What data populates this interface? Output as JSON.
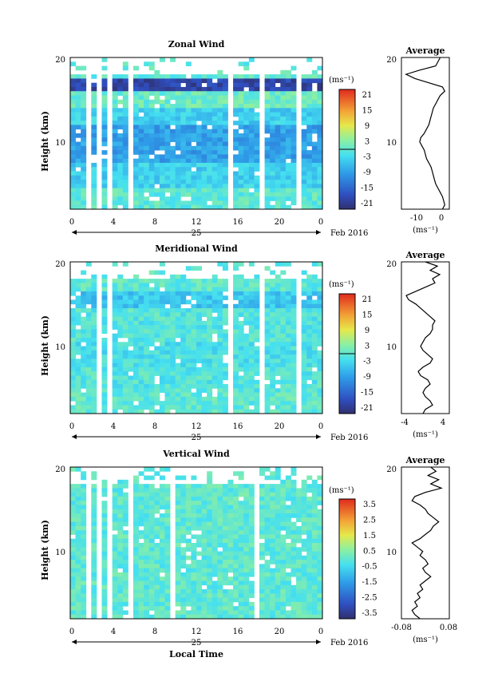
{
  "figure": {
    "xlabel": "Local Time",
    "date_label": "Feb 2016",
    "day_label": "25",
    "x_ticks": [
      "0",
      "4",
      "8",
      "12",
      "16",
      "20",
      "0"
    ],
    "unit_label": "(ms⁻¹)"
  },
  "panels": [
    {
      "title": "Zonal Wind",
      "ylabel": "Height (km)",
      "y_ticks": [
        "20",
        "10"
      ],
      "colorbar_ticks": [
        "21",
        "15",
        "9",
        "3",
        "-3",
        "-9",
        "-15",
        "-21"
      ],
      "avg_title": "Average",
      "avg_x_ticks": [
        "-10",
        "0"
      ],
      "avg_y_ticks": [
        "20",
        "10"
      ]
    },
    {
      "title": "Meridional Wind",
      "ylabel": "Height (km)",
      "y_ticks": [
        "20",
        "10"
      ],
      "colorbar_ticks": [
        "21",
        "15",
        "9",
        "3",
        "-3",
        "-9",
        "-15",
        "-21"
      ],
      "avg_title": "Average",
      "avg_x_ticks": [
        "-4",
        "4"
      ],
      "avg_y_ticks": [
        "20",
        "10"
      ]
    },
    {
      "title": "Vertical Wind",
      "ylabel": "Height (km)",
      "y_ticks": [
        "20",
        "10"
      ],
      "colorbar_ticks": [
        "3.5",
        "2.5",
        "1.5",
        "0.5",
        "-0.5",
        "-1.5",
        "-2.5",
        "-3.5"
      ],
      "avg_title": "Average",
      "avg_x_ticks": [
        "-0.08",
        "0.08"
      ],
      "avg_y_ticks": [
        "20",
        "10"
      ]
    }
  ],
  "chart_data": [
    {
      "type": "heatmap",
      "title": "Zonal Wind",
      "xlabel": "Local Time",
      "ylabel": "Height (km)",
      "xlim": [
        0,
        24
      ],
      "ylim": [
        1.5,
        19.5
      ],
      "colorbar": {
        "unit": "(ms⁻¹)",
        "range": [
          -24,
          24
        ]
      },
      "x_gaps_hours": [
        [
          1.6,
          2.0
        ],
        [
          2.6,
          2.9
        ],
        [
          3.5,
          3.9
        ],
        [
          5.4,
          5.8
        ],
        [
          9.3,
          9.7
        ],
        [
          15.2,
          15.6
        ],
        [
          18.0,
          18.3
        ],
        [
          21.6,
          21.9
        ]
      ],
      "profile_bands": [
        {
          "z_top": 19.5,
          "z_bottom": 17.0,
          "value": 0
        },
        {
          "z_top": 17.0,
          "z_bottom": 15.5,
          "value": -20
        },
        {
          "z_top": 15.5,
          "z_bottom": 13.5,
          "value": 1
        },
        {
          "z_top": 13.5,
          "z_bottom": 11.5,
          "value": -4
        },
        {
          "z_top": 11.5,
          "z_bottom": 7.0,
          "value": -9
        },
        {
          "z_top": 7.0,
          "z_bottom": 4.0,
          "value": -4
        },
        {
          "z_top": 4.0,
          "z_bottom": 1.5,
          "value": 0
        }
      ],
      "average_profile": {
        "xlim": [
          -18,
          3
        ],
        "height": [
          19.5,
          18.5,
          18.0,
          17.5,
          17.0,
          16.5,
          16.0,
          15.5,
          15.0,
          14.5,
          14.0,
          13.5,
          13.0,
          12.5,
          12.0,
          11.5,
          11.0,
          10.5,
          10.0,
          9.5,
          9.0,
          8.5,
          8.0,
          7.5,
          7.0,
          6.5,
          6.0,
          5.5,
          5.0,
          4.5,
          4.0,
          3.5,
          3.0,
          2.5,
          2.0,
          1.5
        ],
        "value": [
          -1,
          -3,
          -10,
          -16,
          -12,
          -6,
          0,
          1,
          -1,
          -2,
          -3,
          -4,
          -4.5,
          -5,
          -5.5,
          -6,
          -7,
          -8,
          -9.5,
          -10,
          -9,
          -8,
          -7.5,
          -7,
          -6,
          -5,
          -4.5,
          -4,
          -3.5,
          -3,
          -2,
          -1,
          0,
          0.5,
          1,
          0
        ]
      }
    },
    {
      "type": "heatmap",
      "title": "Meridional Wind",
      "xlabel": "Local Time",
      "ylabel": "Height (km)",
      "xlim": [
        0,
        24
      ],
      "ylim": [
        1.5,
        19.5
      ],
      "colorbar": {
        "unit": "(ms⁻¹)",
        "range": [
          -24,
          24
        ]
      },
      "x_gaps_hours": [
        [
          1.8,
          2.1
        ],
        [
          2.6,
          2.9
        ],
        [
          3.7,
          4.0
        ],
        [
          5.4,
          5.7
        ],
        [
          9.3,
          9.6
        ],
        [
          15.2,
          15.5
        ],
        [
          18.0,
          18.3
        ],
        [
          21.5,
          21.8
        ]
      ],
      "profile_bands": [
        {
          "z_top": 19.5,
          "z_bottom": 16.0,
          "value": 0
        },
        {
          "z_top": 16.0,
          "z_bottom": 14.0,
          "value": -5
        },
        {
          "z_top": 14.0,
          "z_bottom": 10.0,
          "value": -1
        },
        {
          "z_top": 10.0,
          "z_bottom": 7.0,
          "value": -2
        },
        {
          "z_top": 7.0,
          "z_bottom": 4.0,
          "value": -1
        },
        {
          "z_top": 4.0,
          "z_bottom": 1.5,
          "value": 0
        }
      ],
      "average_profile": {
        "xlim": [
          -5,
          5
        ],
        "height": [
          19.5,
          19.0,
          18.5,
          18.0,
          17.5,
          17.0,
          16.5,
          16.0,
          15.5,
          15.0,
          14.5,
          14.0,
          13.5,
          13.0,
          12.5,
          12.0,
          11.5,
          11.0,
          10.5,
          10.0,
          9.5,
          9.0,
          8.5,
          8.0,
          7.5,
          7.0,
          6.5,
          6.0,
          5.5,
          5.0,
          4.5,
          4.0,
          3.5,
          3.0,
          2.5,
          2.0,
          1.5
        ],
        "value": [
          0,
          2.5,
          1,
          3,
          1.5,
          2,
          0,
          -2,
          -4,
          -3.5,
          -2,
          -1,
          0,
          1,
          2,
          1.5,
          1.5,
          1,
          0,
          -0.5,
          -1,
          -0.5,
          0.5,
          1.5,
          1,
          -0.5,
          -1.5,
          -1,
          0.5,
          1,
          0,
          -0.5,
          0,
          1,
          1.5,
          0,
          -0.5
        ]
      }
    },
    {
      "type": "heatmap",
      "title": "Vertical Wind",
      "xlabel": "Local Time",
      "ylabel": "Height (km)",
      "xlim": [
        0,
        24
      ],
      "ylim": [
        1.5,
        19.5
      ],
      "colorbar": {
        "unit": "(ms⁻¹)",
        "range": [
          -4,
          4
        ]
      },
      "x_gaps_hours": [
        [
          1.6,
          1.9
        ],
        [
          2.5,
          2.8
        ],
        [
          3.5,
          3.8
        ],
        [
          5.6,
          5.8
        ],
        [
          9.5,
          9.8
        ],
        [
          15.4,
          15.7
        ],
        [
          17.7,
          18.0
        ],
        [
          21.4,
          21.7
        ]
      ],
      "profile_bands": [
        {
          "z_top": 19.5,
          "z_bottom": 1.5,
          "value": 0
        }
      ],
      "average_profile": {
        "xlim": [
          -0.09,
          0.09
        ],
        "height": [
          19.5,
          19.0,
          18.5,
          18.0,
          17.5,
          17.0,
          16.5,
          16.0,
          15.5,
          15.0,
          14.5,
          14.0,
          13.5,
          13.0,
          12.5,
          12.0,
          11.5,
          11.0,
          10.5,
          10.0,
          9.5,
          9.0,
          8.5,
          8.0,
          7.5,
          7.0,
          6.5,
          6.0,
          5.5,
          5.0,
          4.5,
          4.0,
          3.5,
          3.0,
          2.5,
          2.0,
          1.5
        ],
        "value": [
          0.02,
          0.04,
          0.01,
          0.05,
          0.02,
          0.06,
          0.0,
          -0.04,
          -0.05,
          -0.02,
          0.0,
          0.01,
          0.03,
          0.05,
          0.03,
          0.02,
          0.0,
          -0.02,
          -0.05,
          -0.03,
          -0.01,
          -0.02,
          0.0,
          0.01,
          -0.01,
          0.0,
          0.02,
          0.0,
          -0.02,
          -0.01,
          -0.03,
          -0.02,
          -0.04,
          -0.03,
          -0.05,
          -0.04,
          -0.02
        ]
      }
    }
  ]
}
